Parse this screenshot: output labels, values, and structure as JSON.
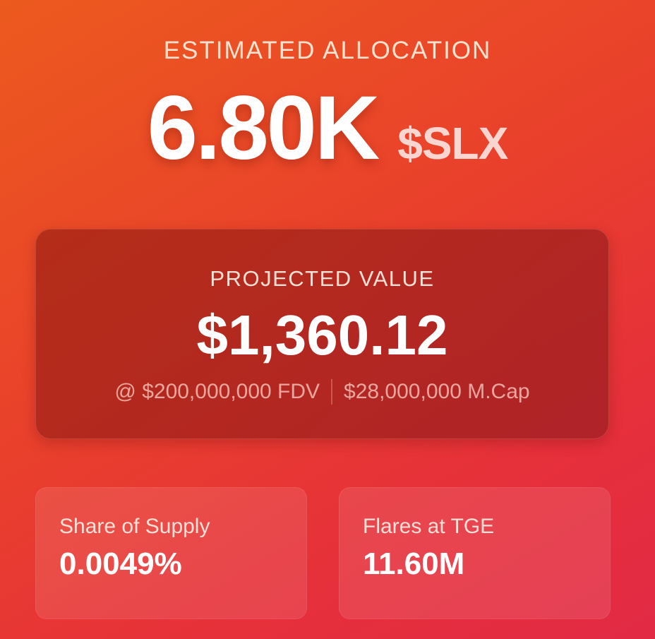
{
  "allocation": {
    "label": "ESTIMATED ALLOCATION",
    "amount": "6.80K",
    "ticker": "$SLX"
  },
  "projected": {
    "label": "PROJECTED VALUE",
    "value": "$1,360.12",
    "fdv_text": "@ $200,000,000 FDV",
    "mcap_text": "$28,000,000 M.Cap"
  },
  "stats": [
    {
      "label": "Share of Supply",
      "value": "0.0049%"
    },
    {
      "label": "Flares at TGE",
      "value": "11.60M"
    }
  ],
  "colors": {
    "background_start": "#ec5a1e",
    "background_end": "#e22a45",
    "card_dark": "#a3221a",
    "text_primary": "#ffffff",
    "text_soft": "#fde3cf"
  }
}
